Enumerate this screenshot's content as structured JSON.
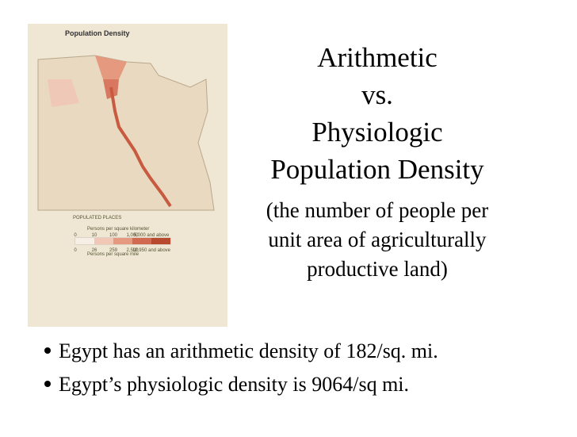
{
  "slide": {
    "title_lines": [
      "Arithmetic",
      "vs.",
      "Physiologic",
      "Population Density"
    ],
    "subtitle_lines": [
      "(the number of people per",
      "unit area of agriculturally",
      "productive land)"
    ],
    "bullets": [
      "Egypt has an arithmetic density of 182/sq. mi.",
      "Egypt’s physiologic density is 9064/sq mi."
    ]
  },
  "map": {
    "title": "Population Density",
    "legend_title": "POPULATED PLACES",
    "km_ticks": [
      "0",
      "10",
      "100",
      "1,000",
      "5,000 and above"
    ],
    "km_label": "Persons per square kilometer",
    "mi_ticks": [
      "0",
      "26",
      "259",
      "2,590",
      "12,950 and above"
    ],
    "mi_label": "Persons per square mile"
  }
}
